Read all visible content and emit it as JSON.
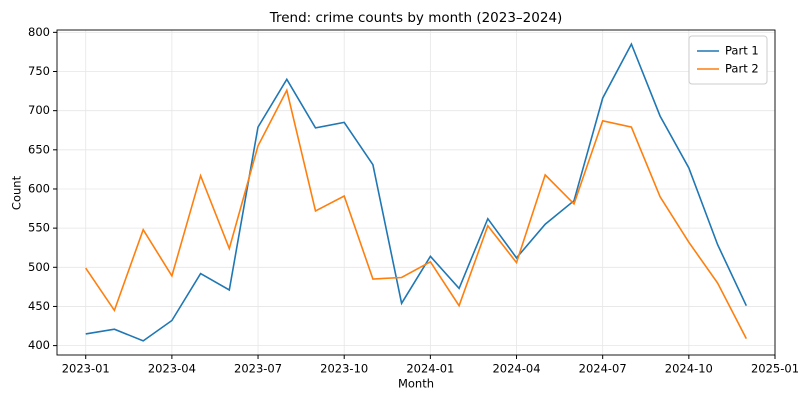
{
  "chart_data": {
    "type": "line",
    "title": "Trend: crime counts by month (2023–2024)",
    "x_label": "Month",
    "y_label": "Count",
    "x": [
      "2023-01",
      "2023-02",
      "2023-03",
      "2023-04",
      "2023-05",
      "2023-06",
      "2023-07",
      "2023-08",
      "2023-09",
      "2023-10",
      "2023-11",
      "2023-12",
      "2024-01",
      "2024-02",
      "2024-03",
      "2024-04",
      "2024-05",
      "2024-06",
      "2024-07",
      "2024-08",
      "2024-09",
      "2024-10",
      "2024-11",
      "2024-12"
    ],
    "series": [
      {
        "name": "Part 1",
        "color": "#1f77b4",
        "values": [
          415,
          421,
          406,
          432,
          492,
          471,
          679,
          740,
          678,
          685,
          631,
          454,
          514,
          473,
          562,
          512,
          555,
          585,
          716,
          785,
          693,
          627,
          529,
          451
        ]
      },
      {
        "name": "Part 2",
        "color": "#ff7f0e",
        "values": [
          499,
          445,
          548,
          489,
          617,
          524,
          655,
          726,
          572,
          591,
          485,
          487,
          507,
          451,
          553,
          506,
          618,
          581,
          687,
          679,
          590,
          532,
          480,
          409
        ]
      }
    ],
    "xlim": [
      "2022-12",
      "2025-01"
    ],
    "xticks": [
      "2023-01",
      "2023-04",
      "2023-07",
      "2023-10",
      "2024-01",
      "2024-04",
      "2024-07",
      "2024-10",
      "2025-01"
    ],
    "ylim": [
      388,
      803
    ],
    "yticks": [
      400,
      450,
      500,
      550,
      600,
      650,
      700,
      750,
      800
    ],
    "grid": true,
    "legend": "upper right"
  }
}
